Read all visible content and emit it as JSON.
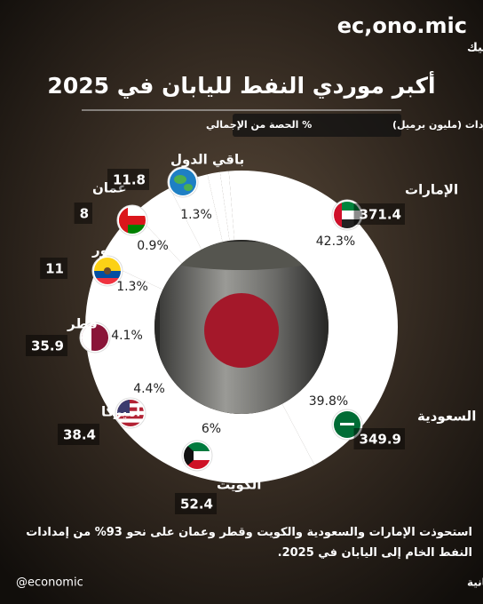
{
  "brand": {
    "name": "ec,ono.mic",
    "name_ar": "إيكونوميك",
    "handle": "@economic"
  },
  "chart_data": {
    "type": "pie",
    "title": "أكبر موردي النفط لليابان في 2025",
    "categories": [
      "الإمارات",
      "السعودية",
      "الكويت",
      "أميركا",
      "قطر",
      "الإكوادور",
      "عمان",
      "باقي الدول"
    ],
    "series": [
      {
        "name": "حجم الواردات (مليون برميل)",
        "values": [
          371.4,
          349.9,
          52.4,
          38.4,
          35.9,
          11,
          8,
          11.8
        ]
      },
      {
        "name": "% الحصة من الإجمالي",
        "values": [
          42.3,
          39.8,
          6,
          4.4,
          4.1,
          1.3,
          0.9,
          1.3
        ],
        "value_labels": [
          "42.3%",
          "39.8%",
          "6%",
          "4.4%",
          "4.1%",
          "1.3%",
          "0.9%",
          "1.3%"
        ],
        "color": "#ffffff"
      }
    ]
  },
  "note": "استحوذت الإمارات والسعودية والكويت وقطر وعمان على نحو 93% من إمدادات النفط الخام إلى اليابان في 2025.",
  "source": "المصدر: وزارة الاقتصاد والتجارة والصناعة اليابانية"
}
